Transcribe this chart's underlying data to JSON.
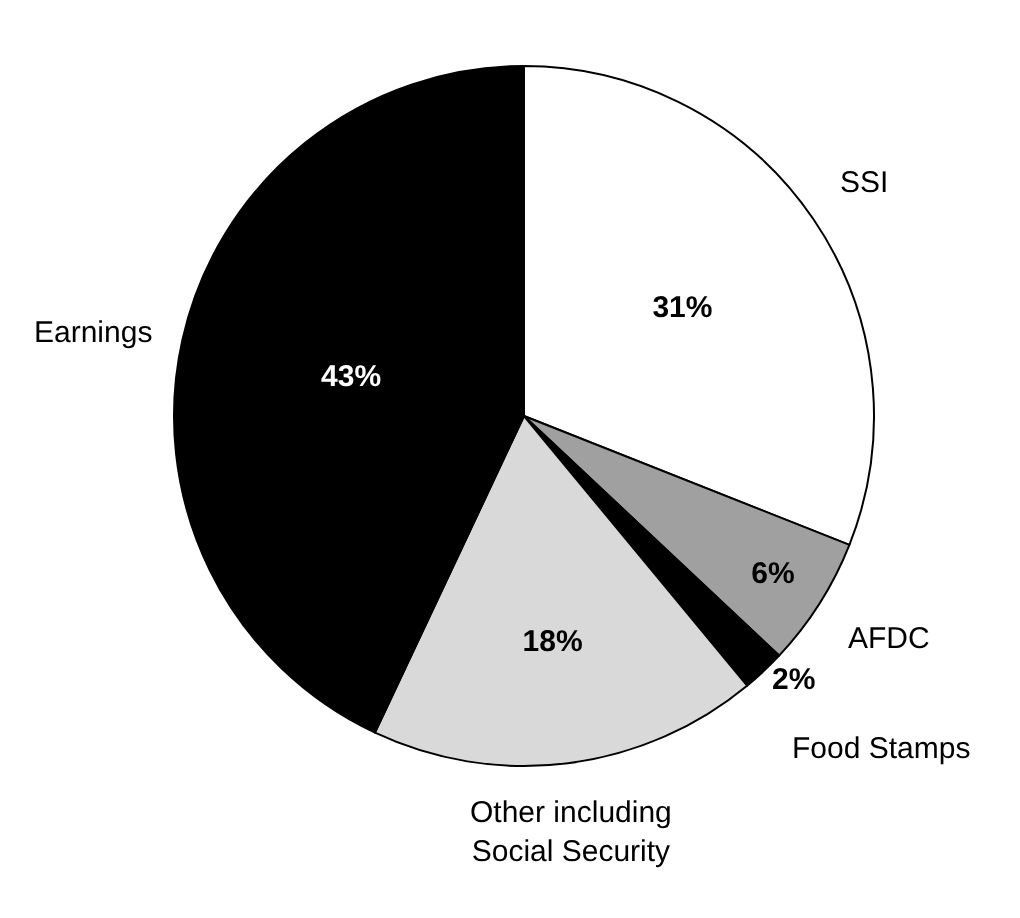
{
  "chart_data": {
    "type": "pie",
    "categories": [
      "SSI",
      "AFDC",
      "Food Stamps",
      "Other including\nSocial Security",
      "Earnings"
    ],
    "values": [
      31,
      6,
      2,
      18,
      43
    ],
    "value_labels": [
      "31%",
      "6%",
      "2%",
      "18%",
      "43%"
    ],
    "colors": [
      "#ffffff",
      "#a0a0a0",
      "#000000",
      "#d9d9d9",
      "#000000"
    ],
    "legend": false
  }
}
